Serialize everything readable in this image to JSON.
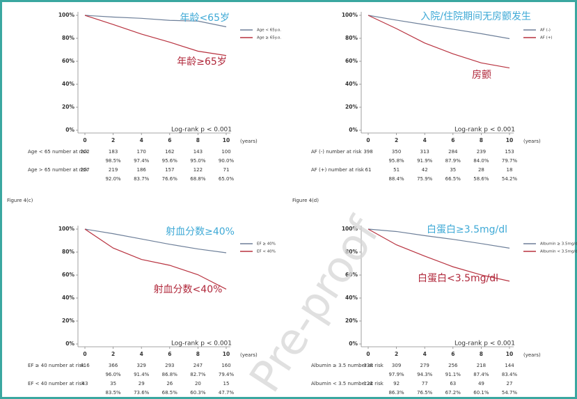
{
  "figure_labels": [
    "Figure 4(c)",
    "Figure 4(d)"
  ],
  "watermark": "Pre-proof",
  "chart_data": [
    {
      "type": "line",
      "x": [
        0,
        2,
        4,
        6,
        8,
        10
      ],
      "xlim": [
        0,
        10
      ],
      "ylim": [
        0,
        100
      ],
      "xticks": [
        0,
        2,
        4,
        6,
        8,
        10
      ],
      "x_unit": "(years)",
      "yticks": [
        {
          "value": 0,
          "label": "0%"
        },
        {
          "value": 20,
          "label": "20%"
        },
        {
          "value": 40,
          "label": "40%"
        },
        {
          "value": 60,
          "label": "60%"
        },
        {
          "value": 80,
          "label": "80%"
        },
        {
          "value": 100,
          "label": "100%"
        }
      ],
      "stat": "Log-rank p < 0.001",
      "series": [
        {
          "name": "Age < 65y.o.",
          "color": "#6d7f99",
          "values": [
            100,
            98.5,
            97.4,
            95.6,
            95.0,
            90.0
          ],
          "value_labels": [
            null,
            "98.5%",
            "97.4%",
            "95.6%",
            "95.0%",
            "90.0%"
          ],
          "at_risk_label": "Age < 65 number at risk",
          "at_risk": [
            202,
            183,
            170,
            162,
            143,
            100
          ]
        },
        {
          "name": "Age ≥ 65y.o.",
          "color": "#b8323f",
          "values": [
            100,
            92.0,
            83.7,
            76.6,
            68.8,
            65.0
          ],
          "value_labels": [
            null,
            "92.0%",
            "83.7%",
            "76.6%",
            "68.8%",
            "65.0%"
          ],
          "at_risk_label": "Age > 65 number at risk",
          "at_risk": [
            257,
            219,
            186,
            157,
            122,
            71
          ]
        }
      ],
      "annotations": [
        {
          "text": "年龄<65岁",
          "color": "#3ea9d6"
        },
        {
          "text": "年龄≥65岁",
          "color": "#b0273a"
        }
      ]
    },
    {
      "type": "line",
      "x": [
        0,
        2,
        4,
        6,
        8,
        10
      ],
      "xlim": [
        0,
        10
      ],
      "ylim": [
        0,
        100
      ],
      "xticks": [
        0,
        2,
        4,
        6,
        8,
        10
      ],
      "x_unit": "(years)",
      "yticks": [
        {
          "value": 0,
          "label": "0%"
        },
        {
          "value": 20,
          "label": "20%"
        },
        {
          "value": 40,
          "label": "40%"
        },
        {
          "value": 60,
          "label": "60%"
        },
        {
          "value": 80,
          "label": "80%"
        },
        {
          "value": 100,
          "label": "100%"
        }
      ],
      "stat": "Log-rank p < 0.001",
      "series": [
        {
          "name": "AF (-)",
          "color": "#6d7f99",
          "values": [
            100,
            95.8,
            91.9,
            87.9,
            84.0,
            79.7
          ],
          "value_labels": [
            null,
            "95.8%",
            "91.9%",
            "87.9%",
            "84.0%",
            "79.7%"
          ],
          "at_risk_label": "AF (-) number at risk",
          "at_risk": [
            398,
            350,
            313,
            284,
            239,
            153
          ]
        },
        {
          "name": "AF (+)",
          "color": "#b8323f",
          "values": [
            100,
            88.4,
            75.9,
            66.5,
            58.6,
            54.2
          ],
          "value_labels": [
            null,
            "88.4%",
            "75.9%",
            "66.5%",
            "58.6%",
            "54.2%"
          ],
          "at_risk_label": "AF (+) number at risk",
          "at_risk": [
            61,
            51,
            42,
            35,
            28,
            18
          ]
        }
      ],
      "annotations": [
        {
          "text": "入院/住院期间无房颤发生",
          "color": "#3ea9d6"
        },
        {
          "text": "房颤",
          "color": "#b0273a"
        }
      ]
    },
    {
      "type": "line",
      "x": [
        0,
        2,
        4,
        6,
        8,
        10
      ],
      "xlim": [
        0,
        10
      ],
      "ylim": [
        0,
        100
      ],
      "xticks": [
        0,
        2,
        4,
        6,
        8,
        10
      ],
      "x_unit": "(years)",
      "yticks": [
        {
          "value": 0,
          "label": "0%"
        },
        {
          "value": 20,
          "label": "20%"
        },
        {
          "value": 40,
          "label": "40%"
        },
        {
          "value": 60,
          "label": "60%"
        },
        {
          "value": 80,
          "label": "80%"
        },
        {
          "value": 100,
          "label": "100%"
        }
      ],
      "stat": "Log-rank p < 0.001",
      "series": [
        {
          "name": "EF ≥ 40%",
          "color": "#6d7f99",
          "values": [
            100,
            96.0,
            91.4,
            86.8,
            82.7,
            79.4
          ],
          "value_labels": [
            null,
            "96.0%",
            "91.4%",
            "86.8%",
            "82.7%",
            "79.4%"
          ],
          "at_risk_label": "EF ≥ 40 number at risk",
          "at_risk": [
            416,
            366,
            329,
            293,
            247,
            160
          ]
        },
        {
          "name": "EF < 40%",
          "color": "#b8323f",
          "values": [
            100,
            83.5,
            73.6,
            68.5,
            60.3,
            47.7
          ],
          "value_labels": [
            null,
            "83.5%",
            "73.6%",
            "68.5%",
            "60.3%",
            "47.7%"
          ],
          "at_risk_label": "EF < 40 number at risk",
          "at_risk": [
            43,
            35,
            29,
            26,
            20,
            15
          ]
        }
      ],
      "annotations": [
        {
          "text": "射血分数≥40%",
          "color": "#3ea9d6"
        },
        {
          "text": "射血分数<40%",
          "color": "#b0273a"
        }
      ]
    },
    {
      "type": "line",
      "x": [
        0,
        2,
        4,
        6,
        8,
        10
      ],
      "xlim": [
        0,
        10
      ],
      "ylim": [
        0,
        100
      ],
      "xticks": [
        0,
        2,
        4,
        6,
        8,
        10
      ],
      "x_unit": "(years)",
      "yticks": [
        {
          "value": 0,
          "label": "0%"
        },
        {
          "value": 20,
          "label": "20%"
        },
        {
          "value": 40,
          "label": "40%"
        },
        {
          "value": 60,
          "label": "60%"
        },
        {
          "value": 80,
          "label": "80%"
        },
        {
          "value": 100,
          "label": "100%"
        }
      ],
      "stat": "Log-rank p < 0.001",
      "series": [
        {
          "name": "Albumin ≥ 3.5mg/dl",
          "color": "#6d7f99",
          "values": [
            100,
            97.9,
            94.3,
            91.1,
            87.4,
            83.4
          ],
          "value_labels": [
            null,
            "97.9%",
            "94.3%",
            "91.1%",
            "87.4%",
            "83.4%"
          ],
          "at_risk_label": "Albumin ≥ 3.5 number at risk",
          "at_risk": [
            338,
            309,
            279,
            256,
            218,
            144
          ]
        },
        {
          "name": "Albumin < 3.5mg/dl",
          "color": "#b8323f",
          "values": [
            100,
            86.3,
            76.5,
            67.2,
            60.1,
            54.7
          ],
          "value_labels": [
            null,
            "86.3%",
            "76.5%",
            "67.2%",
            "60.1%",
            "54.7%"
          ],
          "at_risk_label": "Albumin < 3.5 number at risk",
          "at_risk": [
            121,
            92,
            77,
            63,
            49,
            27
          ]
        }
      ],
      "annotations": [
        {
          "text": "白蛋白≥3.5mg/dl",
          "color": "#3ea9d6"
        },
        {
          "text": "白蛋白<3.5mg/dl",
          "color": "#b0273a"
        }
      ]
    }
  ]
}
